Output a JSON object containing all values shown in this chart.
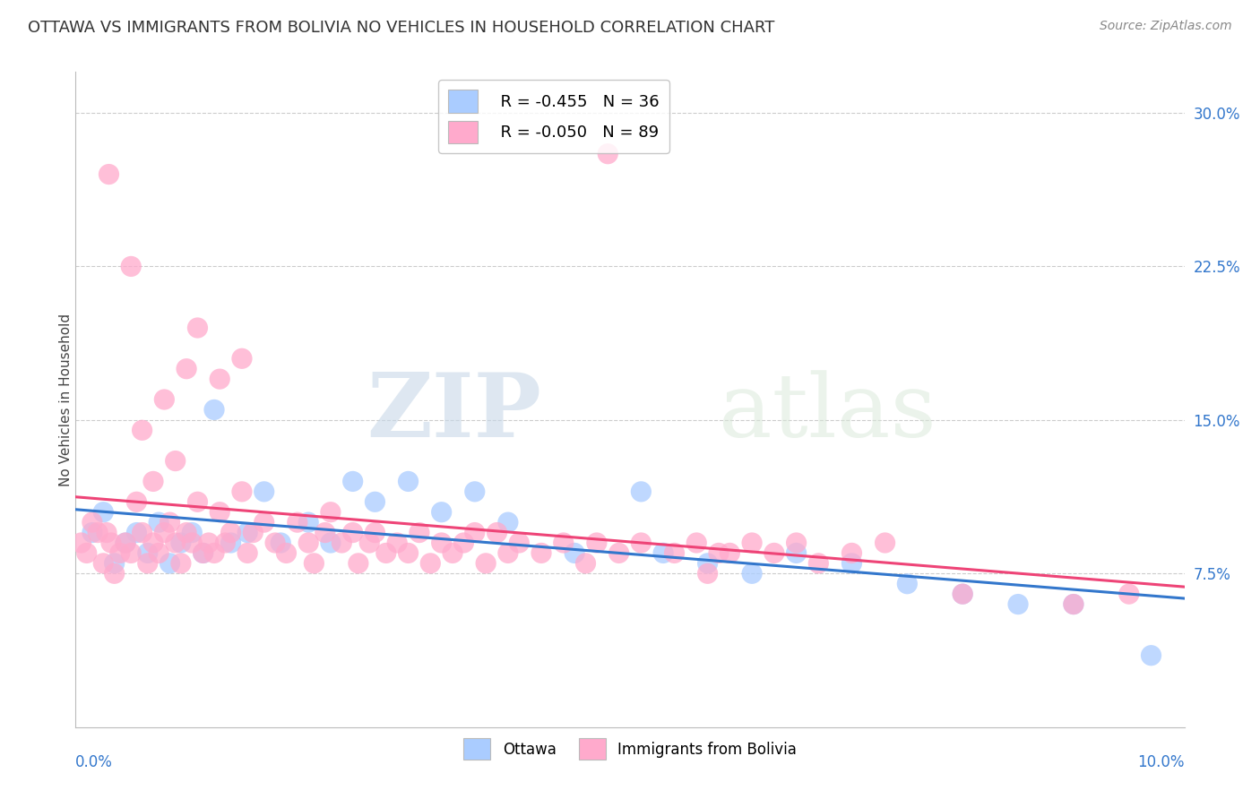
{
  "title": "OTTAWA VS IMMIGRANTS FROM BOLIVIA NO VEHICLES IN HOUSEHOLD CORRELATION CHART",
  "source": "Source: ZipAtlas.com",
  "ylabel": "No Vehicles in Household",
  "xlim": [
    0.0,
    10.0
  ],
  "ylim": [
    0.0,
    32.0
  ],
  "yticks": [
    7.5,
    15.0,
    22.5,
    30.0
  ],
  "ytick_labels": [
    "7.5%",
    "15.0%",
    "22.5%",
    "30.0%"
  ],
  "series": [
    {
      "label": "Ottawa",
      "R": -0.455,
      "N": 36,
      "color": "#aaccff",
      "line_color": "#3377cc",
      "x": [
        0.15,
        0.25,
        0.35,
        0.45,
        0.55,
        0.65,
        0.75,
        0.85,
        0.95,
        1.05,
        1.15,
        1.25,
        1.4,
        1.55,
        1.7,
        1.85,
        2.1,
        2.3,
        2.5,
        2.7,
        3.0,
        3.3,
        3.6,
        3.9,
        4.5,
        5.1,
        5.3,
        5.7,
        6.1,
        6.5,
        7.0,
        7.5,
        8.0,
        8.5,
        9.0,
        9.7
      ],
      "y": [
        9.5,
        10.5,
        8.0,
        9.0,
        9.5,
        8.5,
        10.0,
        8.0,
        9.0,
        9.5,
        8.5,
        15.5,
        9.0,
        9.5,
        11.5,
        9.0,
        10.0,
        9.0,
        12.0,
        11.0,
        12.0,
        10.5,
        11.5,
        10.0,
        8.5,
        11.5,
        8.5,
        8.0,
        7.5,
        8.5,
        8.0,
        7.0,
        6.5,
        6.0,
        6.0,
        3.5
      ]
    },
    {
      "label": "Immigrants from Bolivia",
      "R": -0.05,
      "N": 89,
      "color": "#ffaacc",
      "line_color": "#ee4477",
      "x": [
        0.05,
        0.1,
        0.15,
        0.2,
        0.25,
        0.28,
        0.32,
        0.35,
        0.4,
        0.45,
        0.5,
        0.55,
        0.6,
        0.65,
        0.7,
        0.75,
        0.8,
        0.85,
        0.9,
        0.95,
        1.0,
        1.05,
        1.1,
        1.15,
        1.2,
        1.25,
        1.3,
        1.35,
        1.4,
        1.5,
        1.55,
        1.6,
        1.7,
        1.8,
        1.9,
        2.0,
        2.1,
        2.15,
        2.25,
        2.3,
        2.4,
        2.5,
        2.55,
        2.65,
        2.7,
        2.8,
        2.9,
        3.0,
        3.1,
        3.2,
        3.3,
        3.4,
        3.5,
        3.6,
        3.7,
        3.8,
        3.9,
        4.0,
        4.2,
        4.4,
        4.6,
        4.7,
        4.9,
        5.1,
        5.4,
        5.6,
        5.7,
        5.9,
        6.1,
        6.3,
        6.5,
        6.7,
        7.0,
        7.3,
        0.3,
        0.5,
        0.6,
        0.7,
        0.8,
        0.9,
        1.0,
        1.1,
        1.3,
        1.5,
        8.0,
        9.0,
        9.5,
        4.8,
        5.8
      ],
      "y": [
        9.0,
        8.5,
        10.0,
        9.5,
        8.0,
        9.5,
        9.0,
        7.5,
        8.5,
        9.0,
        8.5,
        11.0,
        9.5,
        8.0,
        9.0,
        8.5,
        9.5,
        10.0,
        9.0,
        8.0,
        9.5,
        9.0,
        11.0,
        8.5,
        9.0,
        8.5,
        10.5,
        9.0,
        9.5,
        11.5,
        8.5,
        9.5,
        10.0,
        9.0,
        8.5,
        10.0,
        9.0,
        8.0,
        9.5,
        10.5,
        9.0,
        9.5,
        8.0,
        9.0,
        9.5,
        8.5,
        9.0,
        8.5,
        9.5,
        8.0,
        9.0,
        8.5,
        9.0,
        9.5,
        8.0,
        9.5,
        8.5,
        9.0,
        8.5,
        9.0,
        8.0,
        9.0,
        8.5,
        9.0,
        8.5,
        9.0,
        7.5,
        8.5,
        9.0,
        8.5,
        9.0,
        8.0,
        8.5,
        9.0,
        27.0,
        22.5,
        14.5,
        12.0,
        16.0,
        13.0,
        17.5,
        19.5,
        17.0,
        18.0,
        6.5,
        6.0,
        6.5,
        28.0,
        8.5
      ]
    }
  ],
  "watermark_zip": "ZIP",
  "watermark_atlas": "atlas",
  "background_color": "#ffffff",
  "grid_color": "#cccccc",
  "title_fontsize": 13,
  "source_fontsize": 10
}
